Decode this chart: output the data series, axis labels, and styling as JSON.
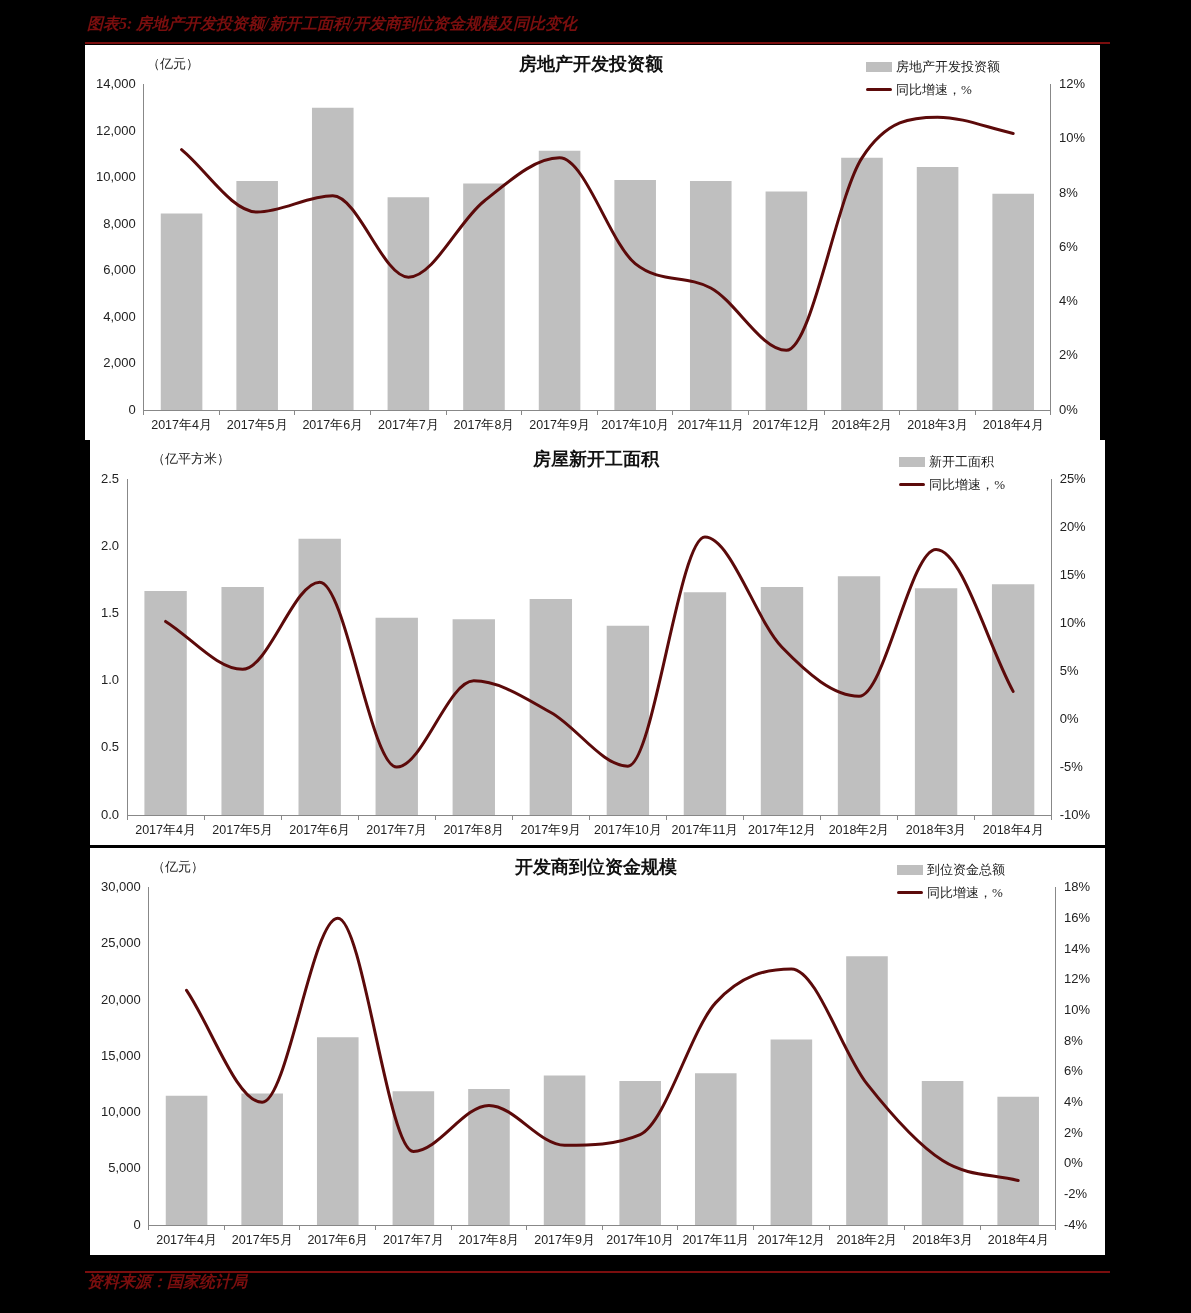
{
  "chart_data": [
    {
      "type": "bar",
      "title": "房地产开发投资额",
      "ylabel": "（亿元）",
      "annotations": [
        "图表5: 房地产开发投资额/新开工面积/开发商到位资金规模及同比变化"
      ],
      "categories": [
        "2017年4月",
        "2017年5月",
        "2017年6月",
        "2017年7月",
        "2017年8月",
        "2017年9月",
        "2017年10月",
        "2017年11月",
        "2017年12月",
        "2018年2月",
        "2018年3月",
        "2018年4月"
      ],
      "series": [
        {
          "name": "房地产开发投资额",
          "color": "#bfbfbf",
          "values": [
            8450,
            9850,
            13000,
            9150,
            9750,
            11150,
            9900,
            9850,
            9400,
            10850,
            10450,
            9300
          ]
        },
        {
          "name": "同比增速，%",
          "type": "line",
          "axis": "y2",
          "color": "#5c0a0a",
          "values": [
            9.6,
            7.3,
            7.9,
            4.9,
            7.7,
            9.3,
            5.4,
            4.5,
            2.2,
            9.3,
            10.8,
            10.2
          ]
        }
      ],
      "ylim": [
        0,
        14000
      ],
      "yticks": [
        0,
        {
          "value": 2000,
          "label": "2,000"
        },
        {
          "value": 4000,
          "label": "4,000"
        },
        {
          "value": 6000,
          "label": "6,000"
        },
        {
          "value": 8000,
          "label": "8,000"
        },
        {
          "value": 10000,
          "label": "10,000"
        },
        {
          "value": 12000,
          "label": "12,000"
        },
        {
          "value": 14000,
          "label": "14,000"
        }
      ],
      "y2lim": [
        0,
        12
      ],
      "y2ticks": [
        {
          "value": 0,
          "label": "0%"
        },
        {
          "value": 2,
          "label": "2%"
        },
        {
          "value": 4,
          "label": "4%"
        },
        {
          "value": 6,
          "label": "6%"
        },
        {
          "value": 8,
          "label": "8%"
        },
        {
          "value": 10,
          "label": "10%"
        },
        {
          "value": 12,
          "label": "12%"
        }
      ],
      "grid": false,
      "legend": "top right",
      "marker": "none",
      "line_style": "solid"
    },
    {
      "type": "bar",
      "title": "房屋新开工面积",
      "ylabel": "（亿平方米）",
      "categories": [
        "2017年4月",
        "2017年5月",
        "2017年6月",
        "2017年7月",
        "2017年8月",
        "2017年9月",
        "2017年10月",
        "2017年11月",
        "2017年12月",
        "2018年2月",
        "2018年3月",
        "2018年4月"
      ],
      "series": [
        {
          "name": "新开工面积",
          "color": "#bfbfbf",
          "values": [
            1.67,
            1.7,
            2.06,
            1.47,
            1.46,
            1.61,
            1.41,
            1.66,
            1.7,
            1.78,
            1.69,
            1.72
          ]
        },
        {
          "name": "同比增速，%",
          "type": "line",
          "axis": "y2",
          "color": "#5c0a0a",
          "values": [
            10.2,
            5.2,
            14.3,
            -5,
            4,
            0.7,
            -4.9,
            19,
            7.5,
            2.4,
            17.7,
            2.9
          ]
        }
      ],
      "ylim": [
        0,
        2.5
      ],
      "yticks": [
        {
          "value": 0,
          "label": "0.0"
        },
        {
          "value": 0.5,
          "label": "0.5"
        },
        {
          "value": 1,
          "label": "1.0"
        },
        {
          "value": 1.5,
          "label": "1.5"
        },
        {
          "value": 2,
          "label": "2.0"
        },
        {
          "value": 2.5,
          "label": "2.5"
        }
      ],
      "y2lim": [
        -10,
        25
      ],
      "y2ticks": [
        {
          "value": -10,
          "label": "-10%"
        },
        {
          "value": -5,
          "label": "-5%"
        },
        {
          "value": 0,
          "label": "0%"
        },
        {
          "value": 5,
          "label": "5%"
        },
        {
          "value": 10,
          "label": "10%"
        },
        {
          "value": 15,
          "label": "15%"
        },
        {
          "value": 20,
          "label": "20%"
        },
        {
          "value": 25,
          "label": "25%"
        }
      ],
      "grid": false,
      "legend": "top right",
      "marker": "none",
      "line_style": "solid"
    },
    {
      "type": "bar",
      "title": "开发商到位资金规模",
      "ylabel": "（亿元）",
      "annotations": [
        "资料来源：国家统计局"
      ],
      "categories": [
        "2017年4月",
        "2017年5月",
        "2017年6月",
        "2017年7月",
        "2017年8月",
        "2017年9月",
        "2017年10月",
        "2017年11月",
        "2017年12月",
        "2018年2月",
        "2018年3月",
        "2018年4月"
      ],
      "series": [
        {
          "name": "到位资金总额",
          "color": "#bfbfbf",
          "values": [
            11500,
            11700,
            16700,
            11900,
            12100,
            13300,
            12800,
            13500,
            16500,
            23900,
            12800,
            11400
          ]
        },
        {
          "name": "同比增速，%",
          "type": "line",
          "axis": "y2",
          "color": "#5c0a0a",
          "values": [
            11.3,
            4,
            16,
            0.8,
            3.8,
            1.2,
            1.9,
            10.5,
            12.7,
            5.2,
            0.2,
            -1.1
          ]
        }
      ],
      "ylim": [
        0,
        30000
      ],
      "yticks": [
        0,
        {
          "value": 5000,
          "label": "5,000"
        },
        {
          "value": 10000,
          "label": "10,000"
        },
        {
          "value": 15000,
          "label": "15,000"
        },
        {
          "value": 20000,
          "label": "20,000"
        },
        {
          "value": 25000,
          "label": "25,000"
        },
        {
          "value": 30000,
          "label": "30,000"
        }
      ],
      "y2lim": [
        -4,
        18
      ],
      "y2ticks": [
        {
          "value": -4,
          "label": "-4%"
        },
        {
          "value": -2,
          "label": "-2%"
        },
        {
          "value": 0,
          "label": "0%"
        },
        {
          "value": 2,
          "label": "2%"
        },
        {
          "value": 4,
          "label": "4%"
        },
        {
          "value": 6,
          "label": "6%"
        },
        {
          "value": 8,
          "label": "8%"
        },
        {
          "value": 10,
          "label": "10%"
        },
        {
          "value": 12,
          "label": "12%"
        },
        {
          "value": 14,
          "label": "14%"
        },
        {
          "value": 16,
          "label": "16%"
        },
        {
          "value": 18,
          "label": "18%"
        }
      ],
      "grid": false,
      "legend": "top right",
      "marker": "none",
      "line_style": "solid"
    }
  ]
}
